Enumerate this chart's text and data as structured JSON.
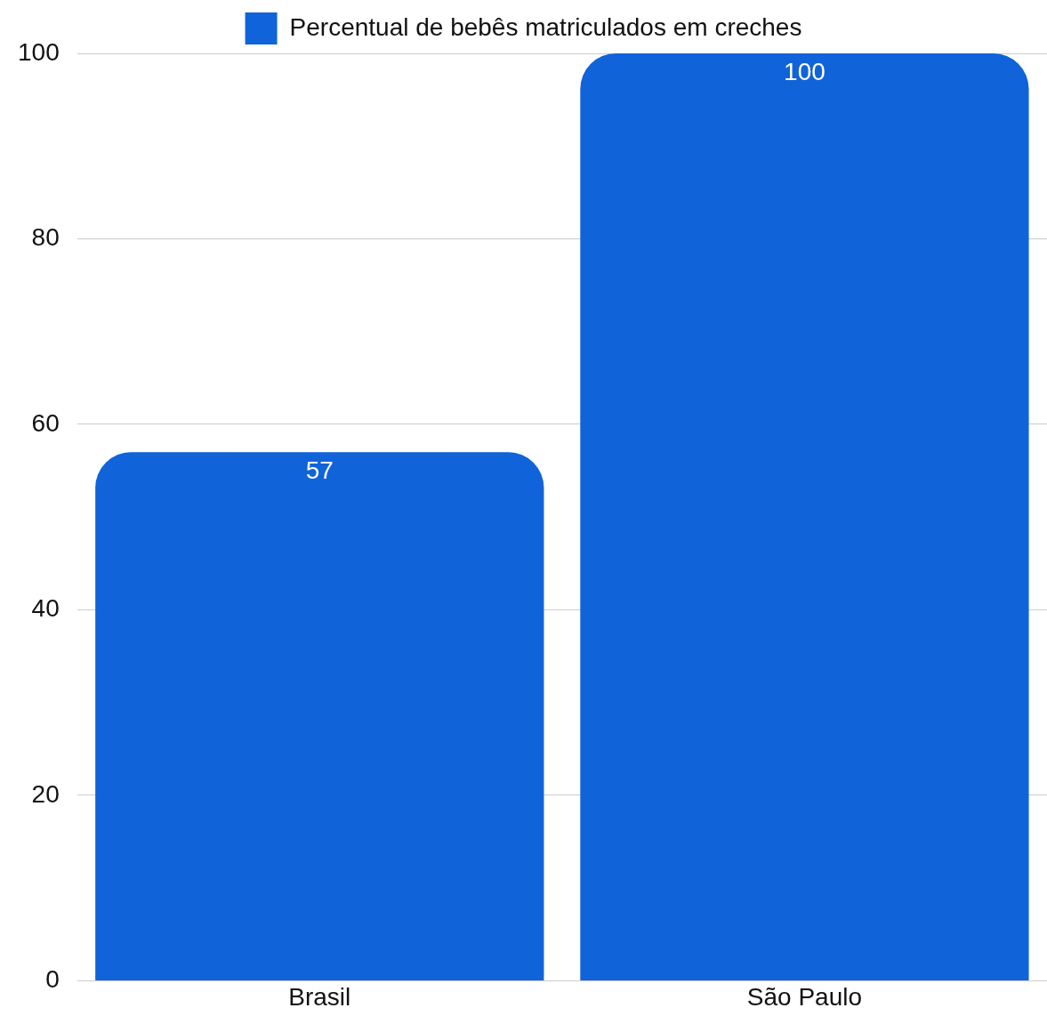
{
  "chart_data": {
    "type": "bar",
    "categories": [
      "Brasil",
      "São Paulo"
    ],
    "series": [
      {
        "name": "Percentual de bebês matriculados em creches",
        "color": "#1063d9",
        "values": [
          57,
          100
        ]
      }
    ],
    "ylim": [
      0,
      100
    ],
    "yticks": [
      0,
      20,
      40,
      60,
      80,
      100
    ],
    "grid": "y",
    "legend": "top",
    "data_labels": true
  }
}
